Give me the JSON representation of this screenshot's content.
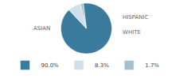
{
  "chart_data": {
    "type": "pie",
    "categories": [
      "90.0%",
      "8.3%",
      "1.7%"
    ],
    "values": [
      90.0,
      8.3,
      1.7
    ],
    "colors": [
      "#3a7a9c",
      "#cfe0ea",
      "#a5bfcc"
    ],
    "annotations": [
      "ASIAN",
      "HISPANIC",
      "WHITE"
    ],
    "legend": "bottom"
  }
}
